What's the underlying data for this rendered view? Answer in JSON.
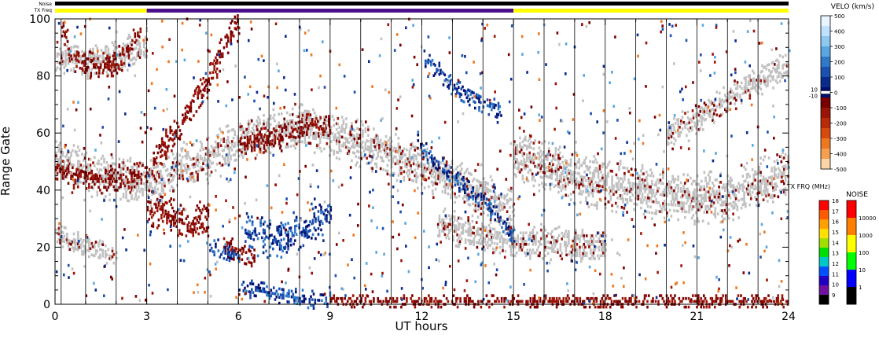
{
  "strip_labels": {
    "noise": "Noise",
    "tx_freq": "TX Freq"
  },
  "chart_data": {
    "type": "heatmap",
    "xlabel": "UT hours",
    "ylabel": "Range Gate",
    "xlim": [
      0,
      24
    ],
    "ylim": [
      0,
      100
    ],
    "x_ticks": [
      0,
      3,
      6,
      9,
      12,
      15,
      18,
      21,
      24
    ],
    "y_ticks": [
      0,
      20,
      40,
      60,
      80,
      100
    ],
    "tx_freq_strip": [
      {
        "start": 0,
        "end": 3,
        "color": "#ffff00"
      },
      {
        "start": 3,
        "end": 15,
        "color": "#4b0f8c"
      },
      {
        "start": 15,
        "end": 24,
        "color": "#ffff00"
      }
    ],
    "noise_strip_color": "#000000",
    "scan_boundaries_ut": [
      0.2,
      1.0,
      2.0,
      3.0,
      4.0,
      5.0,
      6.0,
      7.0,
      8.0,
      9.0,
      10.0,
      11.0,
      12.0,
      13.0,
      14.0,
      15.0,
      16.0,
      17.0,
      18.0,
      19.0,
      20.0,
      21.0,
      22.0,
      23.0
    ],
    "ground_scatter_color": "#c0c0c0",
    "scatter_bands": [
      {
        "kind": "ground",
        "points": [
          [
            0,
            50
          ],
          [
            1,
            46
          ],
          [
            2,
            44
          ],
          [
            3,
            42
          ],
          [
            3.5,
            44
          ],
          [
            4,
            48
          ],
          [
            5,
            52
          ],
          [
            6,
            56
          ],
          [
            7,
            60
          ],
          [
            8,
            62
          ],
          [
            9,
            60
          ],
          [
            10,
            56
          ],
          [
            11,
            52
          ],
          [
            12,
            48
          ],
          [
            13,
            44
          ],
          [
            14,
            38
          ],
          [
            15,
            32
          ]
        ],
        "width": 8
      },
      {
        "kind": "ground",
        "points": [
          [
            15,
            52
          ],
          [
            16,
            48
          ],
          [
            17,
            44
          ],
          [
            18,
            42
          ],
          [
            19,
            40
          ],
          [
            20,
            38
          ],
          [
            21,
            37
          ],
          [
            22,
            38
          ],
          [
            23,
            42
          ],
          [
            24,
            46
          ]
        ],
        "width": 9
      },
      {
        "kind": "ground",
        "points": [
          [
            0,
            88
          ],
          [
            1,
            84
          ],
          [
            2,
            86
          ],
          [
            3,
            92
          ]
        ],
        "width": 6
      },
      {
        "kind": "ground",
        "points": [
          [
            12.5,
            28
          ],
          [
            14,
            24
          ],
          [
            15,
            22
          ],
          [
            16,
            22
          ],
          [
            17,
            20
          ],
          [
            18,
            20
          ]
        ],
        "width": 6
      },
      {
        "kind": "ground",
        "points": [
          [
            20,
            60
          ],
          [
            21,
            65
          ],
          [
            22,
            72
          ],
          [
            23,
            78
          ],
          [
            24,
            84
          ]
        ],
        "width": 5
      },
      {
        "kind": "ground",
        "points": [
          [
            0,
            24
          ],
          [
            0.5,
            22
          ],
          [
            1,
            20
          ],
          [
            2,
            16
          ]
        ],
        "width": 4
      },
      {
        "kind": "negative",
        "points": [
          [
            3,
            34
          ],
          [
            3.5,
            32
          ],
          [
            4,
            30
          ],
          [
            4.5,
            28
          ],
          [
            5,
            30
          ]
        ],
        "width": 7
      },
      {
        "kind": "negative",
        "points": [
          [
            3.2,
            50
          ],
          [
            4,
            62
          ],
          [
            5,
            78
          ],
          [
            5.5,
            90
          ],
          [
            6,
            98
          ]
        ],
        "width": 5
      },
      {
        "kind": "negative",
        "points": [
          [
            0.2,
            98
          ],
          [
            0.5,
            88
          ],
          [
            1,
            84
          ],
          [
            2,
            84
          ],
          [
            2.8,
            96
          ]
        ],
        "width": 4
      },
      {
        "kind": "negative",
        "points": [
          [
            6,
            56
          ],
          [
            7,
            58
          ],
          [
            8,
            62
          ],
          [
            9,
            64
          ]
        ],
        "width": 4
      },
      {
        "kind": "negative",
        "points": [
          [
            5.5,
            20
          ],
          [
            6,
            18
          ],
          [
            6.5,
            16
          ]
        ],
        "width": 4
      },
      {
        "kind": "negative",
        "points": [
          [
            0,
            48
          ],
          [
            1,
            44
          ],
          [
            2,
            44
          ],
          [
            3,
            46
          ]
        ],
        "width": 4
      },
      {
        "kind": "positive",
        "points": [
          [
            6.2,
            26
          ],
          [
            7,
            22
          ],
          [
            8,
            26
          ],
          [
            9,
            32
          ]
        ],
        "width": 7
      },
      {
        "kind": "positive",
        "points": [
          [
            11.8,
            58
          ],
          [
            12.2,
            52
          ],
          [
            12.8,
            46
          ],
          [
            13.5,
            40
          ],
          [
            14,
            36
          ],
          [
            14.5,
            30
          ],
          [
            15,
            24
          ]
        ],
        "width": 3
      },
      {
        "kind": "positive",
        "points": [
          [
            12,
            86
          ],
          [
            12.5,
            82
          ],
          [
            13,
            76
          ],
          [
            14,
            70
          ],
          [
            14.6,
            68
          ]
        ],
        "width": 3
      },
      {
        "kind": "positive",
        "points": [
          [
            6,
            6
          ],
          [
            7,
            4
          ],
          [
            8,
            2
          ],
          [
            9,
            1
          ]
        ],
        "width": 3
      },
      {
        "kind": "positive",
        "points": [
          [
            5,
            20
          ],
          [
            5.5,
            18
          ],
          [
            6,
            16
          ]
        ],
        "width": 3
      },
      {
        "kind": "negative",
        "points": [
          [
            9,
            1
          ],
          [
            10,
            1
          ],
          [
            12,
            1
          ],
          [
            14,
            1
          ],
          [
            15,
            1
          ],
          [
            18,
            1
          ],
          [
            21,
            1
          ],
          [
            24,
            1
          ]
        ],
        "width": 2
      }
    ],
    "velocity_colorbar": {
      "title": "VELO (km/s)",
      "ticks": [
        500,
        400,
        300,
        200,
        100,
        0,
        -100,
        -200,
        -300,
        -400,
        -500
      ],
      "side_labels": [
        "10",
        "-10"
      ],
      "colors": [
        "#e8f4ff",
        "#bfe0ff",
        "#8ec8f0",
        "#5aa6e0",
        "#2f79c8",
        "#1b4fb0",
        "#0a2a8c",
        "#000e6e",
        "#7a0000",
        "#9a1508",
        "#b82a08",
        "#d84a10",
        "#ee7820",
        "#f5a050",
        "#fbd4a8"
      ]
    },
    "tx_freq_colorbar": {
      "title": "TX FRQ (MHz)",
      "ticks": [
        18,
        17,
        16,
        15,
        14,
        13,
        12,
        11,
        10,
        9
      ],
      "colors": [
        "#ff0000",
        "#ff5a00",
        "#ffa000",
        "#ffe000",
        "#a0e000",
        "#00e000",
        "#00c8c8",
        "#0050ff",
        "#2000c0",
        "#7010a0",
        "#000000"
      ]
    },
    "noise_colorbar": {
      "title": "NOISE",
      "ticks": [
        "10000",
        "1000",
        "100",
        "10",
        "1"
      ],
      "colors": [
        "#ff0000",
        "#ff8000",
        "#ffff00",
        "#00ff00",
        "#0000ff",
        "#000000"
      ]
    }
  }
}
